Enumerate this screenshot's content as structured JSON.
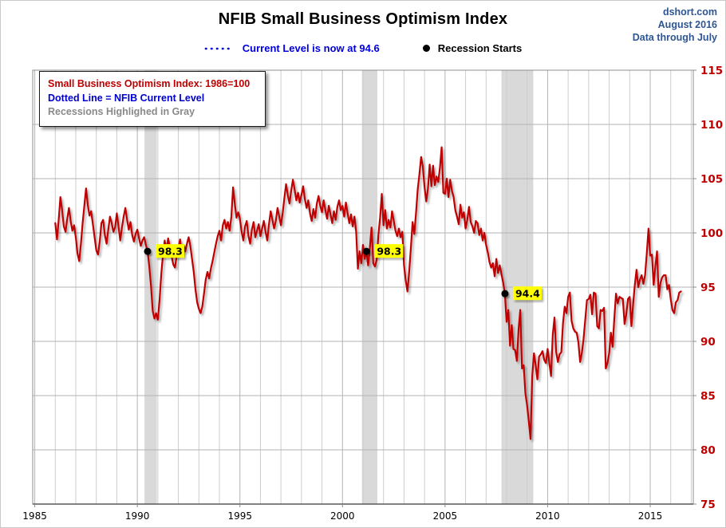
{
  "header": {
    "title": "NFIB Small Business Optimism Index",
    "source": "dshort.com",
    "date": "August 2016",
    "note": "Data through July"
  },
  "legend": {
    "current_level_label": "Current Level is now at 94.6",
    "recession_label": "Recession Starts"
  },
  "info_box": {
    "line1": "Small Business Optimism Index: 1986=100",
    "line2": "Dotted Line = NFIB Current Level",
    "line3": "Recessions Highlighed in Gray"
  },
  "chart_data": {
    "type": "line",
    "title": "NFIB Small Business Optimism Index",
    "xlabel": "",
    "ylabel": "",
    "xlim": [
      1984.9,
      2017.1
    ],
    "ylim": [
      75,
      115
    ],
    "x_ticks": [
      1985,
      1990,
      1995,
      2000,
      2005,
      2010,
      2015
    ],
    "y_ticks": [
      75,
      80,
      85,
      90,
      95,
      100,
      105,
      110,
      115
    ],
    "grid": "on",
    "legend_position": "top-center",
    "series": [
      {
        "name": "Small Business Optimism Index (1986=100)",
        "frequency": "monthly",
        "start_year": 1986,
        "values": [
          100.9,
          99.4,
          101.2,
          103.3,
          102.1,
          100.6,
          100.1,
          101.3,
          102.3,
          101.1,
          100.2,
          100.7,
          99.6,
          98.1,
          97.4,
          99.0,
          100.9,
          102.5,
          104.1,
          102.6,
          101.6,
          102.0,
          100.8,
          99.6,
          98.4,
          98.0,
          99.2,
          100.9,
          101.2,
          99.8,
          99.0,
          100.3,
          101.5,
          100.9,
          100.1,
          100.5,
          101.8,
          100.6,
          99.3,
          100.5,
          101.5,
          102.3,
          101.2,
          100.3,
          101.0,
          99.8,
          99.2,
          99.9,
          100.3,
          99.5,
          98.8,
          99.3,
          99.6,
          98.9,
          98.3,
          96.9,
          95.1,
          92.8,
          92.1,
          92.6,
          92.0,
          93.8,
          96.2,
          98.0,
          99.3,
          98.4,
          99.5,
          98.7,
          97.9,
          97.1,
          96.8,
          97.9,
          98.6,
          99.4,
          98.1,
          98.9,
          98.3,
          99.0,
          99.6,
          98.8,
          97.6,
          96.4,
          94.8,
          93.6,
          93.0,
          92.6,
          93.2,
          94.4,
          95.7,
          96.4,
          95.8,
          96.7,
          97.4,
          98.2,
          99.0,
          99.7,
          100.2,
          99.3,
          100.7,
          101.2,
          100.4,
          101.0,
          100.2,
          101.5,
          104.2,
          102.7,
          101.4,
          101.9,
          101.3,
          100.1,
          99.3,
          100.6,
          101.1,
          99.7,
          99.0,
          100.3,
          101.0,
          99.6,
          100.2,
          100.8,
          99.7,
          100.4,
          101.1,
          100.1,
          99.3,
          100.8,
          102.0,
          101.2,
          100.4,
          101.1,
          102.3,
          101.5,
          100.7,
          101.8,
          103.2,
          104.5,
          103.5,
          102.7,
          103.9,
          104.9,
          104.0,
          103.0,
          103.7,
          102.8,
          103.5,
          104.3,
          103.1,
          102.3,
          103.0,
          101.8,
          101.1,
          102.2,
          101.4,
          102.7,
          103.4,
          102.5,
          101.9,
          103.0,
          102.1,
          101.3,
          102.5,
          101.7,
          100.9,
          102.0,
          101.2,
          102.4,
          103.0,
          102.1,
          102.5,
          101.5,
          102.8,
          101.8,
          100.9,
          101.7,
          100.6,
          101.5,
          100.1,
          96.7,
          98.3,
          97.2,
          98.9,
          97.6,
          98.3,
          97.0,
          98.6,
          100.5,
          97.2,
          96.9,
          97.5,
          99.8,
          101.4,
          103.6,
          100.7,
          102.1,
          100.4,
          101.2,
          100.5,
          102.0,
          101.1,
          100.2,
          99.7,
          100.4,
          99.6,
          100.1,
          97.0,
          95.6,
          94.6,
          96.4,
          98.6,
          101.0,
          99.9,
          101.8,
          104.0,
          105.4,
          107.0,
          106.1,
          104.2,
          102.9,
          104.1,
          106.3,
          104.3,
          106.2,
          104.4,
          105.2,
          104.7,
          106.0,
          107.9,
          103.7,
          103.6,
          105.0,
          103.3,
          104.9,
          103.9,
          103.3,
          102.1,
          101.5,
          100.8,
          102.6,
          101.4,
          101.9,
          100.4,
          101.2,
          102.4,
          101.0,
          100.6,
          100.0,
          101.1,
          100.9,
          99.8,
          100.4,
          99.3,
          100.0,
          98.9,
          98.2,
          97.3,
          96.8,
          97.2,
          96.0,
          97.6,
          96.3,
          97.0,
          96.2,
          95.4,
          94.4,
          91.8,
          92.9,
          89.6,
          91.5,
          89.3,
          89.2,
          88.2,
          91.1,
          92.9,
          87.5,
          87.8,
          85.2,
          84.1,
          82.6,
          81.0,
          86.8,
          88.9,
          87.8,
          86.5,
          88.6,
          88.8,
          89.1,
          88.3,
          88.0,
          89.3,
          88.0,
          86.8,
          90.6,
          92.2,
          89.0,
          88.1,
          88.8,
          89.0,
          91.7,
          93.2,
          92.6,
          94.1,
          94.5,
          91.9,
          91.2,
          90.9,
          90.8,
          89.9,
          88.1,
          88.9,
          90.2,
          92.0,
          93.8,
          93.9,
          94.3,
          92.5,
          94.5,
          94.4,
          91.4,
          91.2,
          92.9,
          92.8,
          93.1,
          87.5,
          88.0,
          88.9,
          90.8,
          89.5,
          92.1,
          94.4,
          93.5,
          94.1,
          94.0,
          93.9,
          91.6,
          92.5,
          93.9,
          94.1,
          91.4,
          93.4,
          95.2,
          96.6,
          95.0,
          95.7,
          96.1,
          95.3,
          96.1,
          98.1,
          100.4,
          97.9,
          98.0,
          95.2,
          96.9,
          98.3,
          94.1,
          95.4,
          95.9,
          96.1,
          96.1,
          94.8,
          95.2,
          93.9,
          92.9,
          92.6,
          93.6,
          93.8,
          94.5,
          94.6
        ]
      }
    ],
    "reference_lines": [
      {
        "name": "index-base",
        "value": 100,
        "style": "solid"
      },
      {
        "name": "nfib-current-level",
        "value": 94.6,
        "style": "dotted",
        "x_start": 1986.0,
        "x_end": 2016.6
      }
    ],
    "recessions": [
      {
        "start": 1990.35,
        "end": 1990.95
      },
      {
        "start": 2000.95,
        "end": 2001.7
      },
      {
        "start": 2007.75,
        "end": 2009.3
      }
    ],
    "annotations": [
      {
        "x": 1990.5,
        "y": 98.3,
        "label": "98.3"
      },
      {
        "x": 2001.17,
        "y": 98.3,
        "label": "98.3"
      },
      {
        "x": 2007.92,
        "y": 94.4,
        "label": "94.4"
      }
    ],
    "colors": {
      "series": "#c00000",
      "current_level": "#0000dd",
      "reference": "#000000",
      "recession_band": "#d9d9d9",
      "y_tick_label": "#c00000",
      "x_tick_label": "#000000",
      "annotation_bg": "#ffff00",
      "annotation_text": "#000000",
      "grid_minor": "#cdcdcd",
      "grid_major": "#b3b3b3",
      "plot_border": "#8c8c8c"
    }
  }
}
